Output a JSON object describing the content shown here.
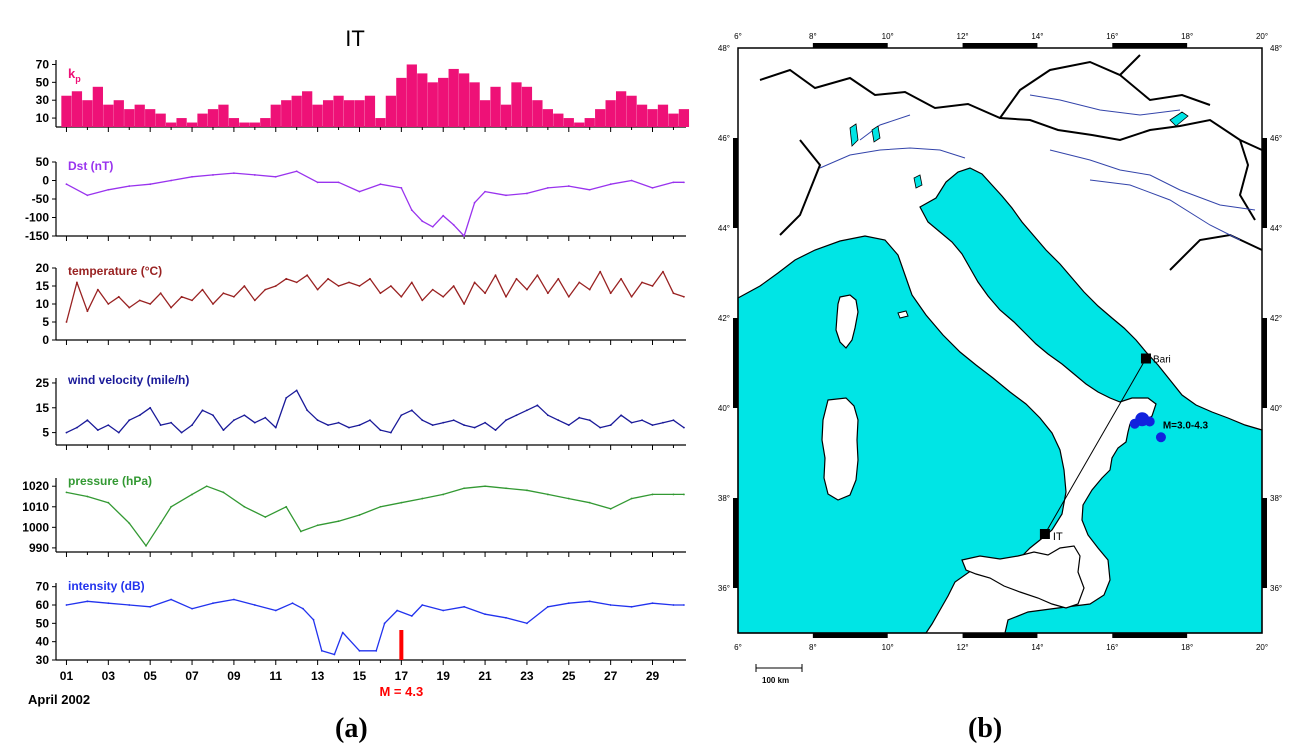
{
  "figure": {
    "label_a": "(a)",
    "label_b": "(b)"
  },
  "chart_data": [
    {
      "type": "multi-panel time series",
      "title": "IT",
      "x_label": "April 2002",
      "x_ticks": [
        "01",
        "03",
        "05",
        "07",
        "09",
        "11",
        "13",
        "15",
        "17",
        "19",
        "21",
        "23",
        "25",
        "27",
        "29"
      ],
      "annotation": {
        "text": "M = 4.3",
        "day": 17,
        "color": "#ff0000"
      },
      "panels": [
        {
          "id": "kp",
          "type": "bar",
          "label": "kp",
          "color": "#ee1177",
          "ylim": [
            0,
            75
          ],
          "yticks": [
            "10",
            "30",
            "50",
            "70"
          ],
          "ytick_values": [
            10,
            30,
            50,
            70
          ],
          "day": [
            1,
            1.5,
            2,
            2.5,
            3,
            3.5,
            4,
            4.5,
            5,
            5.5,
            6,
            6.5,
            7,
            7.5,
            8,
            8.5,
            9,
            9.5,
            10,
            10.5,
            11,
            11.5,
            12,
            12.5,
            13,
            13.5,
            14,
            14.5,
            15,
            15.5,
            16,
            16.5,
            17,
            17.5,
            18,
            18.5,
            19,
            19.5,
            20,
            20.5,
            21,
            21.5,
            22,
            22.5,
            23,
            23.5,
            24,
            24.5,
            25,
            25.5,
            26,
            26.5,
            27,
            27.5,
            28,
            28.5,
            29,
            29.5,
            30,
            30.5
          ],
          "values": [
            35,
            40,
            30,
            45,
            25,
            30,
            20,
            25,
            20,
            15,
            5,
            10,
            5,
            15,
            20,
            25,
            10,
            5,
            5,
            10,
            25,
            30,
            35,
            40,
            25,
            30,
            35,
            30,
            30,
            35,
            10,
            35,
            55,
            70,
            60,
            50,
            55,
            65,
            60,
            50,
            30,
            45,
            25,
            50,
            45,
            30,
            20,
            15,
            10,
            5,
            10,
            20,
            30,
            40,
            35,
            25,
            20,
            25,
            15,
            20
          ]
        },
        {
          "id": "dst",
          "type": "line",
          "label": "Dst (nT)",
          "color": "#9933ee",
          "ylim": [
            -150,
            50
          ],
          "yticks": [
            "50",
            "0",
            "-50",
            "-100",
            "-150"
          ],
          "ytick_values": [
            50,
            0,
            -50,
            -100,
            -150
          ],
          "day": [
            1,
            2,
            3,
            4,
            5,
            6,
            7,
            8,
            9,
            10,
            11,
            12,
            13,
            14,
            15,
            16,
            17,
            17.5,
            18,
            18.5,
            19,
            19.5,
            20,
            20.5,
            21,
            22,
            23,
            24,
            25,
            26,
            27,
            28,
            29,
            30,
            30.5
          ],
          "values": [
            -10,
            -40,
            -25,
            -15,
            -10,
            0,
            10,
            15,
            20,
            15,
            10,
            25,
            -5,
            -5,
            -30,
            -10,
            -20,
            -80,
            -110,
            -125,
            -95,
            -120,
            -150,
            -60,
            -30,
            -40,
            -35,
            -20,
            -15,
            -25,
            -10,
            0,
            -20,
            -5,
            -5
          ]
        },
        {
          "id": "temp",
          "type": "line",
          "label": "temperature (°C)",
          "color": "#992222",
          "ylim": [
            0,
            20
          ],
          "yticks": [
            "20",
            "15",
            "10",
            "5",
            "0"
          ],
          "ytick_values": [
            20,
            15,
            10,
            5,
            0
          ],
          "day": [
            1,
            1.5,
            2,
            2.5,
            3,
            3.5,
            4,
            4.5,
            5,
            5.5,
            6,
            6.5,
            7,
            7.5,
            8,
            8.5,
            9,
            9.5,
            10,
            10.5,
            11,
            11.5,
            12,
            12.5,
            13,
            13.5,
            14,
            14.5,
            15,
            15.5,
            16,
            16.5,
            17,
            17.5,
            18,
            18.5,
            19,
            19.5,
            20,
            20.5,
            21,
            21.5,
            22,
            22.5,
            23,
            23.5,
            24,
            24.5,
            25,
            25.5,
            26,
            26.5,
            27,
            27.5,
            28,
            28.5,
            29,
            29.5,
            30,
            30.5
          ],
          "values": [
            5,
            16,
            8,
            14,
            10,
            12,
            9,
            11,
            10,
            13,
            9,
            12,
            11,
            14,
            10,
            13,
            12,
            15,
            11,
            14,
            15,
            17,
            16,
            18,
            14,
            17,
            15,
            16,
            15,
            17,
            13,
            15,
            12,
            16,
            11,
            14,
            12,
            15,
            10,
            16,
            13,
            18,
            12,
            17,
            14,
            18,
            13,
            17,
            12,
            16,
            14,
            19,
            13,
            17,
            12,
            16,
            15,
            19,
            13,
            12
          ]
        },
        {
          "id": "wind",
          "type": "line",
          "label": "wind velocity (mile/h)",
          "color": "#1a1a99",
          "ylim": [
            0,
            27
          ],
          "yticks": [
            "25",
            "15",
            "5"
          ],
          "ytick_values": [
            25,
            15,
            5
          ],
          "day": [
            1,
            1.5,
            2,
            2.5,
            3,
            3.5,
            4,
            4.5,
            5,
            5.5,
            6,
            6.5,
            7,
            7.5,
            8,
            8.5,
            9,
            9.5,
            10,
            10.5,
            11,
            11.5,
            12,
            12.5,
            13,
            13.5,
            14,
            14.5,
            15,
            15.5,
            16,
            16.5,
            17,
            17.5,
            18,
            18.5,
            19,
            19.5,
            20,
            20.5,
            21,
            21.5,
            22,
            22.5,
            23,
            23.5,
            24,
            24.5,
            25,
            25.5,
            26,
            26.5,
            27,
            27.5,
            28,
            28.5,
            29,
            29.5,
            30,
            30.5
          ],
          "values": [
            5,
            7,
            10,
            6,
            8,
            5,
            10,
            12,
            15,
            8,
            9,
            5,
            8,
            14,
            12,
            6,
            10,
            12,
            9,
            11,
            7,
            19,
            22,
            14,
            10,
            8,
            9,
            7,
            8,
            10,
            6,
            5,
            12,
            14,
            10,
            8,
            9,
            10,
            8,
            7,
            9,
            6,
            10,
            12,
            14,
            16,
            12,
            10,
            8,
            11,
            10,
            7,
            8,
            12,
            9,
            10,
            8,
            9,
            10,
            7
          ]
        },
        {
          "id": "pressure",
          "type": "line",
          "label": "pressure (hPa)",
          "color": "#339933",
          "ylim": [
            988,
            1024
          ],
          "yticks": [
            "1020",
            "1010",
            "1000",
            "990"
          ],
          "ytick_values": [
            1020,
            1010,
            1000,
            990
          ],
          "day": [
            1,
            2,
            3,
            4,
            4.8,
            5.5,
            6,
            7,
            7.7,
            8.5,
            9.5,
            10.5,
            11.5,
            12.2,
            13,
            14,
            15,
            16,
            17,
            18,
            19,
            20,
            21,
            22,
            23,
            24,
            25,
            26,
            27,
            28,
            29,
            30,
            30.5
          ],
          "values": [
            1017,
            1015,
            1012,
            1002,
            991,
            1002,
            1010,
            1016,
            1020,
            1017,
            1010,
            1005,
            1010,
            998,
            1001,
            1003,
            1006,
            1010,
            1012,
            1014,
            1016,
            1019,
            1020,
            1019,
            1018,
            1016,
            1014,
            1012,
            1009,
            1014,
            1016,
            1016,
            1016
          ]
        },
        {
          "id": "intensity",
          "type": "line",
          "label": "intensity (dB)",
          "color": "#2233ee",
          "ylim": [
            30,
            72
          ],
          "yticks": [
            "70",
            "60",
            "50",
            "40",
            "30"
          ],
          "ytick_values": [
            70,
            60,
            50,
            40,
            30
          ],
          "day": [
            1,
            2,
            3,
            4,
            5,
            6,
            7,
            8,
            9,
            10,
            11,
            11.8,
            12.3,
            12.8,
            13.2,
            13.8,
            14.2,
            15,
            15.8,
            16.2,
            16.8,
            17.5,
            18,
            19,
            20,
            21,
            22,
            23,
            24,
            25,
            26,
            27,
            28,
            29,
            30,
            30.5
          ],
          "values": [
            60,
            62,
            61,
            60,
            59,
            63,
            58,
            61,
            63,
            60,
            57,
            61,
            58,
            52,
            35,
            33,
            45,
            35,
            35,
            50,
            57,
            54,
            60,
            57,
            59,
            55,
            53,
            50,
            59,
            61,
            62,
            60,
            59,
            61,
            60,
            60
          ]
        }
      ]
    },
    {
      "type": "map",
      "lon_ticks": [
        "6°",
        "8°",
        "10°",
        "12°",
        "14°",
        "16°",
        "18°",
        "20°"
      ],
      "lon_values": [
        6,
        8,
        10,
        12,
        14,
        16,
        18,
        20
      ],
      "lat_ticks": [
        "48°",
        "46°",
        "44°",
        "42°",
        "40°",
        "38°",
        "36°"
      ],
      "lat_values": [
        48,
        46,
        44,
        42,
        40,
        38,
        36
      ],
      "extent": {
        "lon": [
          6,
          20
        ],
        "lat": [
          35,
          48
        ]
      },
      "sea_color": "#00e5e5",
      "stations": [
        {
          "name": "Bari",
          "lon": 16.9,
          "lat": 41.1
        },
        {
          "name": "IT",
          "lon": 14.2,
          "lat": 37.2
        }
      ],
      "epicenters": [
        {
          "lon": 16.6,
          "lat": 39.65
        },
        {
          "lon": 16.8,
          "lat": 39.75
        },
        {
          "lon": 17.0,
          "lat": 39.7
        },
        {
          "lon": 17.3,
          "lat": 39.35
        }
      ],
      "epicenter_label": "M=3.0-4.3",
      "epicenter_color": "#1122dd",
      "scale_bar": "100 km"
    }
  ]
}
